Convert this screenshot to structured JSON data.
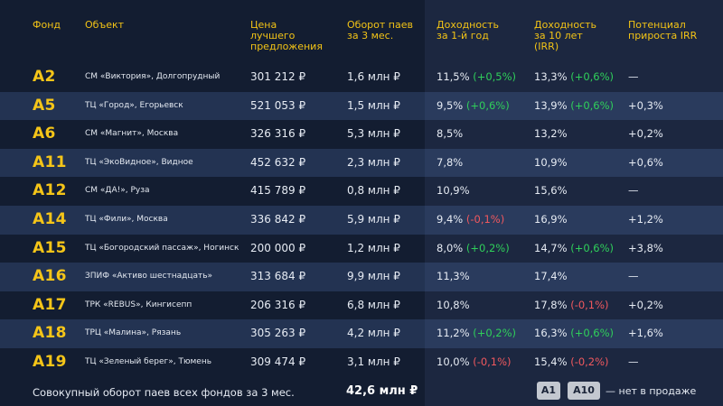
{
  "header": {
    "fund": "Фонд",
    "object": "Объект",
    "price": "Цена\nлучшего\nпредложения",
    "turnover": "Оборот паев\nза 3 мес.",
    "yield_1y": "Доходность\nза 1-й год",
    "yield_10y": "Доходность\nза 10 лет\n(IRR)",
    "potential": "Потенциал\nприроста IRR"
  },
  "rows": [
    {
      "fund": "A2",
      "object": "СМ «Виктория», Долгопрудный",
      "price": "301 212 ₽",
      "turnover": "1,6 млн ₽",
      "y1": "11,5%",
      "y1_delta": "(+0,5%)",
      "y10": "13,3%",
      "y10_delta": "(+0,6%)",
      "potential": "—"
    },
    {
      "fund": "A5",
      "object": "ТЦ «Город», Егорьевск",
      "price": "521 053 ₽",
      "turnover": "1,5 млн ₽",
      "y1": "9,5%",
      "y1_delta": "(+0,6%)",
      "y10": "13,9%",
      "y10_delta": "(+0,6%)",
      "potential": "+0,3%"
    },
    {
      "fund": "A6",
      "object": "СМ «Магнит», Москва",
      "price": "326 316 ₽",
      "turnover": "5,3 млн ₽",
      "y1": "8,5%",
      "y1_delta": "",
      "y10": "13,2%",
      "y10_delta": "",
      "potential": "+0,2%"
    },
    {
      "fund": "A11",
      "object": "ТЦ «ЭкоВидное», Видное",
      "price": "452 632 ₽",
      "turnover": "2,3 млн ₽",
      "y1": "7,8%",
      "y1_delta": "",
      "y10": "10,9%",
      "y10_delta": "",
      "potential": "+0,6%"
    },
    {
      "fund": "A12",
      "object": "СМ «ДА!», Руза",
      "price": "415 789 ₽",
      "turnover": "0,8 млн ₽",
      "y1": "10,9%",
      "y1_delta": "",
      "y10": "15,6%",
      "y10_delta": "",
      "potential": "—"
    },
    {
      "fund": "A14",
      "object": "ТЦ «Фили», Москва",
      "price": "336 842 ₽",
      "turnover": "5,9 млн ₽",
      "y1": "9,4%",
      "y1_delta": "(-0,1%)",
      "y10": "16,9%",
      "y10_delta": "",
      "potential": "+1,2%"
    },
    {
      "fund": "A15",
      "object": "ТЦ «Богородский пассаж», Ногинск",
      "price": "200 000 ₽",
      "turnover": "1,2 млн ₽",
      "y1": "8,0%",
      "y1_delta": "(+0,2%)",
      "y10": "14,7%",
      "y10_delta": "(+0,6%)",
      "potential": "+3,8%"
    },
    {
      "fund": "A16",
      "object": "ЗПИФ «Активо шестнадцать»",
      "price": "313 684 ₽",
      "turnover": "9,9 млн ₽",
      "y1": "11,3%",
      "y1_delta": "",
      "y10": "17,4%",
      "y10_delta": "",
      "potential": "—"
    },
    {
      "fund": "A17",
      "object": "ТРК «REBUS», Кингисепп",
      "price": "206 316 ₽",
      "turnover": "6,8 млн ₽",
      "y1": "10,8%",
      "y1_delta": "",
      "y10": "17,8%",
      "y10_delta": "(-0,1%)",
      "potential": "+0,2%"
    },
    {
      "fund": "A18",
      "object": "ТРЦ «Малина», Рязань",
      "price": "305 263 ₽",
      "turnover": "4,2 млн ₽",
      "y1": "11,2%",
      "y1_delta": "(+0,2%)",
      "y10": "16,3%",
      "y10_delta": "(+0,6%)",
      "potential": "+1,6%"
    },
    {
      "fund": "A19",
      "object": "ТЦ «Зеленый берег», Тюмень",
      "price": "309 474 ₽",
      "turnover": "3,1 млн ₽",
      "y1": "10,0%",
      "y1_delta": "(-0,1%)",
      "y10": "15,4%",
      "y10_delta": "(-0,2%)",
      "potential": "—"
    }
  ],
  "footer": {
    "total_label": "Совокупный оборот паев всех фондов за 3 мес.",
    "total_value": "42,6 млн ₽",
    "badges": [
      "A1",
      "A10"
    ],
    "note": "— нет в продаже"
  },
  "colors": {
    "accent": "#f5c518",
    "positive": "#2fcf5a",
    "negative": "#f0585e"
  }
}
